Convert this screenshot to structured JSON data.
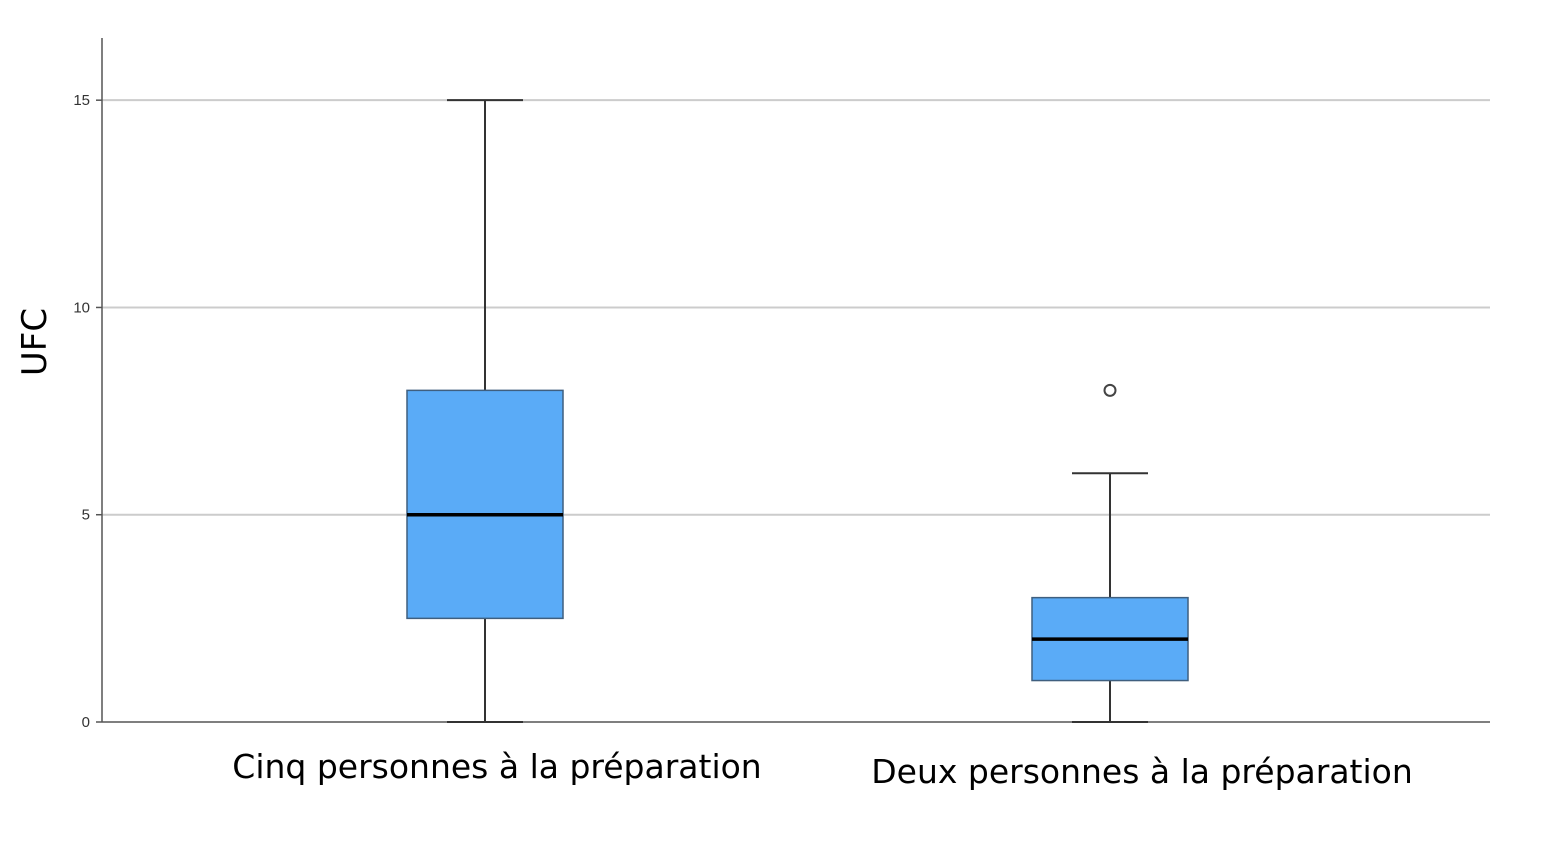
{
  "chart_data": {
    "type": "boxplot",
    "title": "",
    "xlabel": "",
    "ylabel": "UFC",
    "ylim": [
      0,
      16.5
    ],
    "yticks": [
      0,
      5,
      10,
      15
    ],
    "grid": true,
    "categories": [
      "Cinq personnes à la préparation",
      "Deux personnes à la préparation"
    ],
    "boxes": [
      {
        "category": "Cinq personnes à la préparation",
        "min": 0,
        "q1": 2.5,
        "median": 5,
        "q3": 8,
        "max": 15,
        "outliers": []
      },
      {
        "category": "Deux personnes à la préparation",
        "min": 0,
        "q1": 1,
        "median": 2,
        "q3": 3,
        "max": 6,
        "outliers": [
          8
        ]
      }
    ],
    "colors": {
      "box_fill": "#5aabf7",
      "box_stroke": "#3f5f7f",
      "whisker": "#333333",
      "median": "#000000",
      "grid": "#cccccc",
      "axis": "#555555"
    }
  }
}
